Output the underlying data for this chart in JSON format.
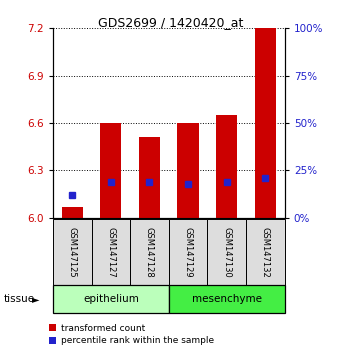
{
  "title": "GDS2699 / 1420420_at",
  "samples": [
    "GSM147125",
    "GSM147127",
    "GSM147128",
    "GSM147129",
    "GSM147130",
    "GSM147132"
  ],
  "transformed_counts": [
    6.07,
    6.6,
    6.51,
    6.6,
    6.65,
    7.2
  ],
  "percentile_ranks": [
    12,
    19,
    19,
    18,
    19,
    21
  ],
  "ylim_left": [
    6.0,
    7.2
  ],
  "ylim_right": [
    0,
    100
  ],
  "yticks_left": [
    6.0,
    6.3,
    6.6,
    6.9,
    7.2
  ],
  "yticks_right": [
    0,
    25,
    50,
    75,
    100
  ],
  "bar_color": "#cc0000",
  "percentile_color": "#2222cc",
  "epithelium_color": "#bbffbb",
  "mesenchyme_color": "#44ee44",
  "bar_bottom": 6.0,
  "bar_width": 0.55,
  "left_label_color": "#cc0000",
  "right_label_color": "#2222cc"
}
